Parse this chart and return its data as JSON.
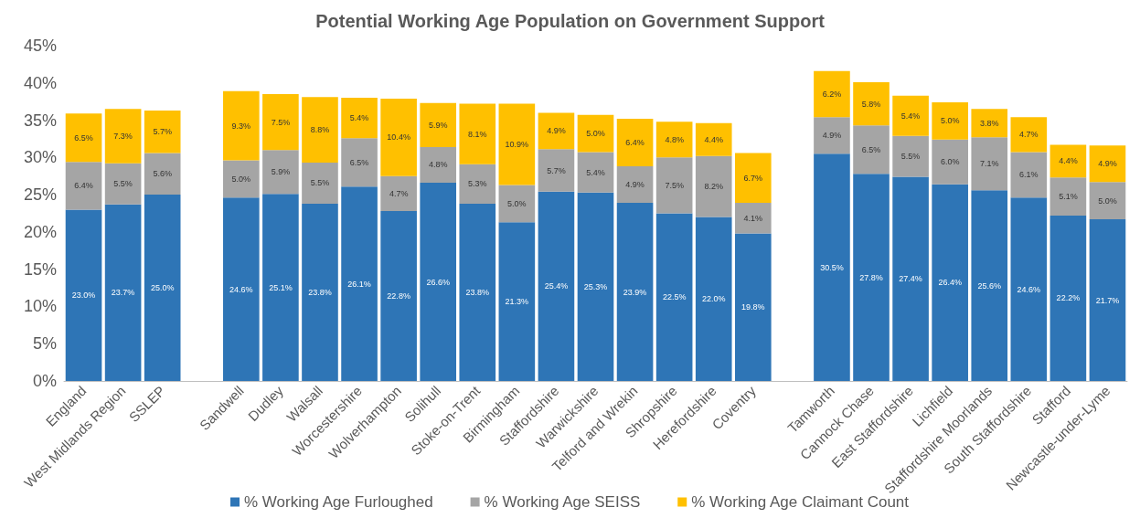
{
  "chart_data": {
    "type": "bar",
    "title": "Potential Working Age Population on Government Support",
    "categories": [
      "England",
      "West Midlands Region",
      "SSLEP",
      null,
      "Sandwell",
      "Dudley",
      "Walsall",
      "Worcestershire",
      "Wolverhampton",
      "Solihull",
      "Stoke-on-Trent",
      "Birmingham",
      "Staffordshire",
      "Warwickshire",
      "Telford and Wrekin",
      "Shropshire",
      "Herefordshire",
      "Coventry",
      null,
      "Tamworth",
      "Cannock Chase",
      "East Staffordshire",
      "Lichfield",
      "Staffordshire Moorlands",
      "South Staffordshire",
      "Stafford",
      "Newcastle-under-Lyme"
    ],
    "series": [
      {
        "name": "% Working Age Furloughed",
        "color": "#2e75b6",
        "values": [
          23.0,
          23.7,
          25.0,
          null,
          24.6,
          25.1,
          23.8,
          26.1,
          22.8,
          26.6,
          23.8,
          21.3,
          25.4,
          25.3,
          23.9,
          22.5,
          22.0,
          19.8,
          null,
          30.5,
          27.8,
          27.4,
          26.4,
          25.6,
          24.6,
          22.2,
          21.7
        ],
        "value_labels": [
          "23.0%",
          "23.7%",
          "25.0%",
          null,
          "24.6%",
          "25.1%",
          "23.8%",
          "26.1%",
          "22.8%",
          "26.6%",
          "23.8%",
          "21.3%",
          "25.4%",
          "25.3%",
          "23.9%",
          "22.5%",
          "22.0%",
          "19.8%",
          null,
          "30.5%",
          "27.8%",
          "27.4%",
          "26.4%",
          "25.6%",
          "24.6%",
          "22.2%",
          "21.7%"
        ]
      },
      {
        "name": "% Working Age SEISS",
        "color": "#a5a5a5",
        "values": [
          6.4,
          5.5,
          5.6,
          null,
          5.0,
          5.9,
          5.5,
          6.5,
          4.7,
          4.8,
          5.3,
          5.0,
          5.7,
          5.4,
          4.9,
          7.5,
          8.2,
          4.1,
          null,
          4.9,
          6.5,
          5.5,
          6.0,
          7.1,
          6.1,
          5.1,
          5.0
        ],
        "value_labels": [
          "6.4%",
          "5.5%",
          "5.6%",
          null,
          "5.0%",
          "5.9%",
          "5.5%",
          "6.5%",
          "4.7%",
          "4.8%",
          "5.3%",
          "5.0%",
          "5.7%",
          "5.4%",
          "4.9%",
          "7.5%",
          "8.2%",
          "4.1%",
          null,
          "4.9%",
          "6.5%",
          "5.5%",
          "6.0%",
          "7.1%",
          "6.1%",
          "5.1%",
          "5.0%"
        ]
      },
      {
        "name": "% Working Age Claimant Count",
        "color": "#ffc000",
        "values": [
          6.5,
          7.3,
          5.7,
          null,
          9.3,
          7.5,
          8.8,
          5.4,
          10.4,
          5.9,
          8.1,
          10.9,
          4.9,
          5.0,
          6.4,
          4.8,
          4.4,
          6.7,
          null,
          6.2,
          5.8,
          5.4,
          5.0,
          3.8,
          4.7,
          4.4,
          4.9
        ],
        "value_labels": [
          "6.5%",
          "7.3%",
          "5.7%",
          null,
          "9.3%",
          "7.5%",
          "8.8%",
          "5.4%",
          "10.4%",
          "5.9%",
          "8.1%",
          "10.9%",
          "4.9%",
          "5.0%",
          "6.4%",
          "4.8%",
          "4.4%",
          "6.7%",
          null,
          "6.2%",
          "5.8%",
          "5.4%",
          "5.0%",
          "3.8%",
          "4.7%",
          "4.4%",
          "4.9%"
        ]
      }
    ],
    "stacked": true,
    "ylim": [
      0,
      45
    ],
    "yticks": [
      {
        "value": 0,
        "label": "0%"
      },
      {
        "value": 5,
        "label": "5%"
      },
      {
        "value": 10,
        "label": "10%"
      },
      {
        "value": 15,
        "label": "15%"
      },
      {
        "value": 20,
        "label": "20%"
      },
      {
        "value": 25,
        "label": "25%"
      },
      {
        "value": 30,
        "label": "30%"
      },
      {
        "value": 35,
        "label": "35%"
      },
      {
        "value": 40,
        "label": "40%"
      },
      {
        "value": 45,
        "label": "45%"
      }
    ],
    "grid": false,
    "legend": "bottom"
  }
}
